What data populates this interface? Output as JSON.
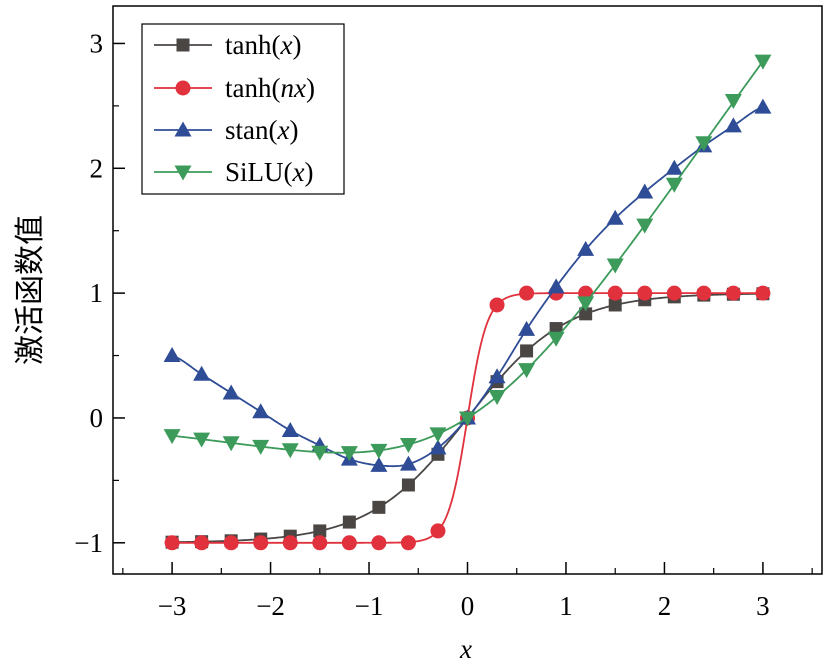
{
  "chart_data": {
    "type": "line",
    "title": "",
    "xlabel": "x",
    "ylabel": "激活函数值",
    "xlim": [
      -3.6,
      3.6
    ],
    "ylim": [
      -1.25,
      3.3
    ],
    "xticks": [
      -3,
      -2,
      -1,
      0,
      1,
      2,
      3
    ],
    "yticks": [
      -1,
      0,
      1,
      2,
      3
    ],
    "xtick_labels": [
      "−3",
      "−2",
      "−1",
      "0",
      "1",
      "2",
      "3"
    ],
    "ytick_labels": [
      "−1",
      "0",
      "1",
      "2",
      "3"
    ],
    "grid": false,
    "legend_position": "top-left",
    "marker_x": [
      -3,
      -2.7,
      -2.4,
      -2.1,
      -1.8,
      -1.5,
      -1.2,
      -0.9,
      -0.6,
      -0.3,
      0,
      0.3,
      0.6,
      0.9,
      1.2,
      1.5,
      1.8,
      2.1,
      2.4,
      2.7,
      3
    ],
    "series": [
      {
        "name": "tanh(x)",
        "legend_main": "tanh(",
        "legend_var": "x",
        "legend_tail": ")",
        "color": "#4a4644",
        "marker": "square",
        "func": "tanh",
        "n": 1,
        "values": [
          -0.995,
          -0.991,
          -0.984,
          -0.97,
          -0.947,
          -0.905,
          -0.834,
          -0.716,
          -0.537,
          -0.291,
          0.0,
          0.291,
          0.537,
          0.716,
          0.834,
          0.905,
          0.947,
          0.97,
          0.984,
          0.991,
          0.995
        ]
      },
      {
        "name": "tanh(nx)",
        "legend_main": "tanh(",
        "legend_var": "nx",
        "legend_tail": ")",
        "color": "#e0313d",
        "marker": "circle",
        "func": "tanh",
        "n": 5,
        "values": [
          -1.0,
          -1.0,
          -1.0,
          -1.0,
          -1.0,
          -1.0,
          -1.0,
          -1.0,
          -1.0,
          -0.905,
          0.0,
          0.905,
          1.0,
          1.0,
          1.0,
          1.0,
          1.0,
          1.0,
          1.0,
          1.0,
          1.0
        ]
      },
      {
        "name": "stan(x)",
        "legend_main": "stan(",
        "legend_var": "x",
        "legend_tail": ")",
        "color": "#2f4d96",
        "marker": "triangle-up",
        "func": "stan",
        "n": 1,
        "values": [
          0.5,
          0.35,
          0.2,
          0.05,
          -0.1,
          -0.22,
          -0.33,
          -0.38,
          -0.37,
          -0.24,
          0.0,
          0.33,
          0.71,
          1.05,
          1.35,
          1.6,
          1.81,
          2.0,
          2.18,
          2.34,
          2.49
        ]
      },
      {
        "name": "SiLU(x)",
        "legend_main": "SiLU(",
        "legend_var": "x",
        "legend_tail": ")",
        "color": "#3c9b5a",
        "marker": "triangle-down",
        "func": "silu",
        "n": 1,
        "values": [
          -0.142,
          -0.17,
          -0.199,
          -0.228,
          -0.255,
          -0.275,
          -0.278,
          -0.26,
          -0.213,
          -0.128,
          0.0,
          0.172,
          0.387,
          0.638,
          0.922,
          1.225,
          1.545,
          1.872,
          2.205,
          2.543,
          2.858
        ]
      }
    ]
  }
}
